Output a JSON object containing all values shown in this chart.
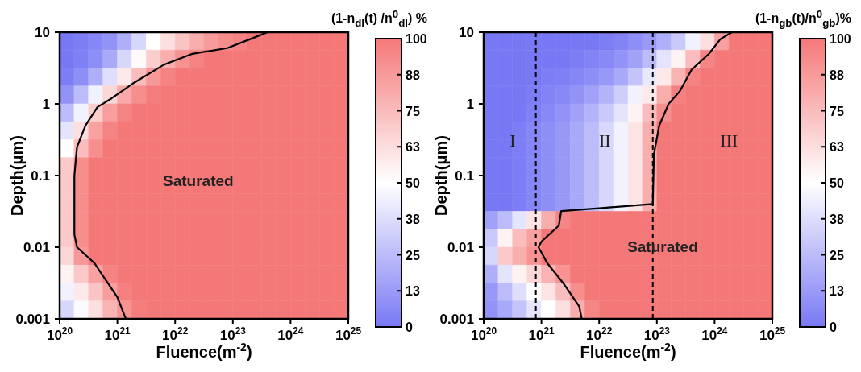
{
  "chart_data": [
    {
      "type": "heatmap",
      "xlabel": "Fluence(m$^{-2}$)",
      "ylabel": "Depth(μm)",
      "clabel": "(1-n$_{dl}$(t) /n$^{0}$$_{dl}$) %",
      "log": "xy",
      "xlim": [
        1e+20,
        1e+25
      ],
      "xticks": [
        {
          "value": 1e+20,
          "label": "10$^{20}$"
        },
        {
          "value": 1e+21,
          "label": "10$^{21}$"
        },
        {
          "value": 1e+22,
          "label": "10$^{22}$"
        },
        {
          "value": 1e+23,
          "label": "10$^{23}$"
        },
        {
          "value": 1e+24,
          "label": "10$^{24}$"
        },
        {
          "value": 1e+25,
          "label": "10$^{25}$"
        }
      ],
      "ylim": [
        0.001,
        10
      ],
      "yticks": [
        0.001,
        0.01,
        0.1,
        1,
        10
      ],
      "clim": [
        0,
        100
      ],
      "cticks": [
        0,
        {
          "value": 12.5,
          "label": "13"
        },
        25,
        {
          "value": 37.5,
          "label": "38"
        },
        50,
        {
          "value": 62.5,
          "label": "63"
        },
        75,
        {
          "value": 87.5,
          "label": "88"
        },
        100
      ],
      "cells": [
        [
          0,
          2,
          5,
          10,
          20,
          35,
          50,
          62,
          72,
          80,
          87,
          92,
          96,
          100,
          100,
          100,
          100,
          100,
          100,
          100
        ],
        [
          0,
          3,
          8,
          18,
          35,
          52,
          68,
          80,
          90,
          96,
          100,
          100,
          100,
          100,
          100,
          100,
          100,
          100,
          100,
          100
        ],
        [
          2,
          8,
          20,
          38,
          58,
          75,
          88,
          96,
          100,
          100,
          100,
          100,
          100,
          100,
          100,
          100,
          100,
          100,
          100,
          100
        ],
        [
          10,
          25,
          45,
          65,
          82,
          92,
          98,
          100,
          100,
          100,
          100,
          100,
          100,
          100,
          100,
          100,
          100,
          100,
          100,
          100
        ],
        [
          25,
          45,
          68,
          86,
          96,
          100,
          100,
          100,
          100,
          100,
          100,
          100,
          100,
          100,
          100,
          100,
          100,
          100,
          100,
          100
        ],
        [
          40,
          62,
          85,
          96,
          100,
          100,
          100,
          100,
          100,
          100,
          100,
          100,
          100,
          100,
          100,
          100,
          100,
          100,
          100,
          100
        ],
        [
          50,
          75,
          92,
          100,
          100,
          100,
          100,
          100,
          100,
          100,
          100,
          100,
          100,
          100,
          100,
          100,
          100,
          100,
          100,
          100
        ],
        [
          70,
          92,
          100,
          100,
          100,
          100,
          100,
          100,
          100,
          100,
          100,
          100,
          100,
          100,
          100,
          100,
          100,
          100,
          100,
          100
        ],
        [
          70,
          92,
          100,
          100,
          100,
          100,
          100,
          100,
          100,
          100,
          100,
          100,
          100,
          100,
          100,
          100,
          100,
          100,
          100,
          100
        ],
        [
          70,
          92,
          100,
          100,
          100,
          100,
          100,
          100,
          100,
          100,
          100,
          100,
          100,
          100,
          100,
          100,
          100,
          100,
          100,
          100
        ],
        [
          70,
          92,
          100,
          100,
          100,
          100,
          100,
          100,
          100,
          100,
          100,
          100,
          100,
          100,
          100,
          100,
          100,
          100,
          100,
          100
        ],
        [
          70,
          92,
          100,
          100,
          100,
          100,
          100,
          100,
          100,
          100,
          100,
          100,
          100,
          100,
          100,
          100,
          100,
          100,
          100,
          100
        ],
        [
          65,
          88,
          100,
          100,
          100,
          100,
          100,
          100,
          100,
          100,
          100,
          100,
          100,
          100,
          100,
          100,
          100,
          100,
          100,
          100
        ],
        [
          55,
          70,
          85,
          96,
          100,
          100,
          100,
          100,
          100,
          100,
          100,
          100,
          100,
          100,
          100,
          100,
          100,
          100,
          100,
          100
        ],
        [
          45,
          58,
          72,
          86,
          97,
          100,
          100,
          100,
          100,
          100,
          100,
          100,
          100,
          100,
          100,
          100,
          100,
          100,
          100,
          100
        ],
        [
          35,
          48,
          62,
          78,
          90,
          98,
          100,
          100,
          100,
          100,
          100,
          100,
          100,
          100,
          100,
          100,
          100,
          100,
          100,
          100
        ]
      ],
      "series": [
        {
          "type": "line",
          "color": "#000000",
          "x": [
            4e+23,
            2e+23,
            8e+22,
            2e+22,
            6.3e+21,
            2e+21,
            8e+20,
            4.5e+20,
            2.8e+20,
            2e+20,
            1.8e+20,
            1.8e+20,
            2e+20,
            4e+20,
            5.6e+20,
            1e+21,
            1.4e+21
          ],
          "values": [
            10,
            8,
            6,
            5,
            3.5,
            2,
            1.2,
            0.9,
            0.5,
            0.25,
            0.1,
            0.015,
            0.01,
            0.006,
            0.004,
            0.002,
            0.001
          ]
        }
      ],
      "annotations": [
        "Saturated"
      ]
    },
    {
      "type": "heatmap",
      "xlabel": "Fluence(m$^{-2}$)",
      "ylabel": "Depth(μm)",
      "clabel": "(1-n$_{gb}$(t)/n$^{0}$$_{gb}$)%",
      "log": "xy",
      "xlim": [
        1e+20,
        1e+25
      ],
      "xticks": [
        {
          "value": 1e+20,
          "label": "10$^{20}$"
        },
        {
          "value": 1e+21,
          "label": "10$^{21}$"
        },
        {
          "value": 1e+22,
          "label": "10$^{22}$"
        },
        {
          "value": 1e+23,
          "label": "10$^{23}$"
        },
        {
          "value": 1e+24,
          "label": "10$^{24}$"
        },
        {
          "value": 1e+25,
          "label": "10$^{25}$"
        }
      ],
      "ylim": [
        0.001,
        10
      ],
      "yticks": [
        0.001,
        0.01,
        0.1,
        1,
        10
      ],
      "clim": [
        0,
        100
      ],
      "cticks": [
        0,
        {
          "value": 12.5,
          "label": "13"
        },
        25,
        {
          "value": 37.5,
          "label": "38"
        },
        50,
        {
          "value": 62.5,
          "label": "63"
        },
        75,
        {
          "value": 87.5,
          "label": "88"
        },
        100
      ],
      "cells": [
        [
          0,
          0,
          0,
          0,
          0,
          0,
          0,
          0,
          2,
          4,
          8,
          12,
          20,
          30,
          45,
          62,
          85,
          100,
          100,
          100
        ],
        [
          0,
          0,
          0,
          0,
          0,
          0,
          2,
          4,
          6,
          10,
          15,
          25,
          40,
          55,
          75,
          95,
          100,
          100,
          100,
          100
        ],
        [
          0,
          0,
          0,
          0,
          2,
          3,
          5,
          8,
          12,
          18,
          28,
          42,
          58,
          78,
          96,
          100,
          100,
          100,
          100,
          100
        ],
        [
          0,
          0,
          0,
          2,
          4,
          6,
          10,
          15,
          22,
          32,
          45,
          58,
          80,
          97,
          100,
          100,
          100,
          100,
          100,
          100
        ],
        [
          0,
          0,
          0,
          3,
          6,
          10,
          15,
          22,
          30,
          40,
          55,
          75,
          92,
          100,
          100,
          100,
          100,
          100,
          100,
          100
        ],
        [
          0,
          0,
          2,
          5,
          8,
          12,
          18,
          25,
          35,
          45,
          60,
          80,
          100,
          100,
          100,
          100,
          100,
          100,
          100,
          100
        ],
        [
          0,
          0,
          2,
          5,
          8,
          12,
          18,
          25,
          35,
          45,
          60,
          80,
          100,
          100,
          100,
          100,
          100,
          100,
          100,
          100
        ],
        [
          0,
          0,
          2,
          5,
          8,
          12,
          18,
          25,
          35,
          45,
          60,
          80,
          100,
          100,
          100,
          100,
          100,
          100,
          100,
          100
        ],
        [
          0,
          0,
          2,
          5,
          8,
          12,
          18,
          25,
          35,
          45,
          60,
          80,
          100,
          100,
          100,
          100,
          100,
          100,
          100,
          100
        ],
        [
          0,
          0,
          2,
          5,
          8,
          12,
          18,
          25,
          35,
          45,
          60,
          80,
          100,
          100,
          100,
          100,
          100,
          100,
          100,
          100
        ],
        [
          15,
          25,
          40,
          60,
          80,
          95,
          100,
          100,
          100,
          100,
          100,
          100,
          100,
          100,
          100,
          100,
          100,
          100,
          100,
          100
        ],
        [
          30,
          55,
          75,
          85,
          100,
          100,
          100,
          100,
          100,
          100,
          100,
          100,
          100,
          100,
          100,
          100,
          100,
          100,
          100,
          100
        ],
        [
          35,
          70,
          80,
          90,
          100,
          100,
          100,
          100,
          100,
          100,
          100,
          100,
          100,
          100,
          100,
          100,
          100,
          100,
          100,
          100
        ],
        [
          20,
          40,
          55,
          65,
          78,
          90,
          100,
          100,
          100,
          100,
          100,
          100,
          100,
          100,
          100,
          100,
          100,
          100,
          100,
          100
        ],
        [
          12,
          25,
          38,
          50,
          60,
          75,
          92,
          100,
          100,
          100,
          100,
          100,
          100,
          100,
          100,
          100,
          100,
          100,
          100,
          100
        ],
        [
          10,
          18,
          28,
          40,
          50,
          62,
          80,
          95,
          100,
          100,
          100,
          100,
          100,
          100,
          100,
          100,
          100,
          100,
          100,
          100
        ]
      ],
      "series": [
        {
          "type": "line",
          "color": "#000000",
          "x": [
            2e+24,
            1.26e+24,
            8e+23,
            4e+23,
            2.5e+23,
            1.6e+23,
            1.1e+23,
            8.9e+22,
            8.5e+22,
            1e+22,
            2.2e+21,
            2e+21,
            1e+21,
            8.9e+20,
            1.26e+21,
            2.5e+21,
            4.5e+21,
            5e+21
          ],
          "values": [
            10,
            8,
            5,
            3,
            1.5,
            1,
            0.5,
            0.2,
            0.04,
            0.035,
            0.032,
            0.02,
            0.012,
            0.01,
            0.006,
            0.003,
            0.0015,
            0.001
          ]
        }
      ],
      "ref_lines": [
        {
          "axis": "x",
          "value": 8e+20,
          "line_style": "dashed",
          "color": "#000000"
        },
        {
          "axis": "x",
          "value": 8.5e+22,
          "line_style": "dashed",
          "color": "#000000"
        }
      ],
      "annotations": [
        "I",
        "II",
        "III",
        "Saturated"
      ]
    }
  ]
}
